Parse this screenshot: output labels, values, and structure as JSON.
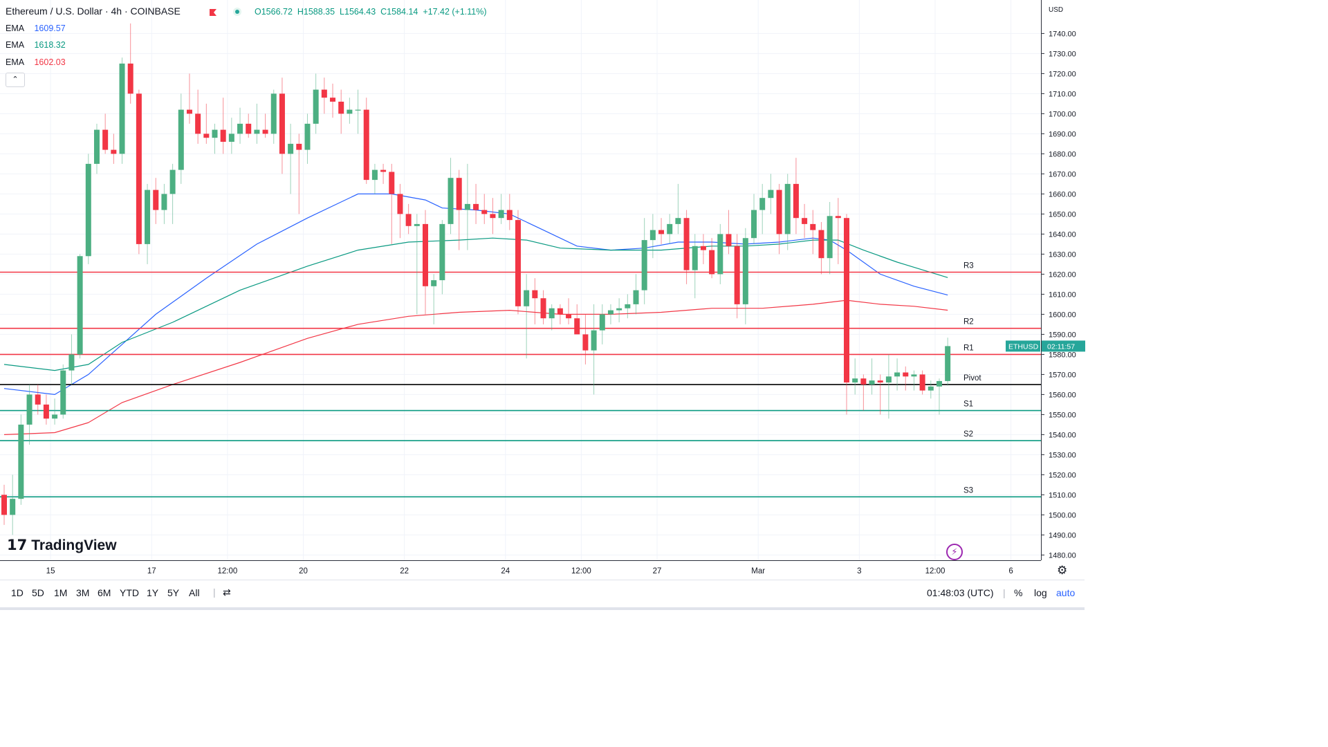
{
  "header": {
    "symbol": "Ethereum / U.S. Dollar · 4h · COINBASE",
    "open": "O1566.72",
    "high": "H1588.35",
    "low": "L1564.43",
    "close": "C1584.14",
    "change": "+17.42 (+1.11%)"
  },
  "emas": [
    {
      "label": "EMA",
      "value": "1609.57",
      "color": "#2962ff"
    },
    {
      "label": "EMA",
      "value": "1618.32",
      "color": "#089981"
    },
    {
      "label": "EMA",
      "value": "1602.03",
      "color": "#f23645"
    }
  ],
  "collapse_label": "⌃",
  "currency": "USD",
  "price_tag": {
    "symbol": "ETHUSD",
    "countdown": "02:11:57",
    "color": "#26a69a"
  },
  "logo_text": "TradingView",
  "bottom": {
    "ranges": [
      "1D",
      "5D",
      "1M",
      "3M",
      "6M",
      "YTD",
      "1Y",
      "5Y",
      "All"
    ],
    "clock": "01:48:03 (UTC)",
    "pct": "%",
    "log": "log",
    "auto": "auto"
  },
  "chart_data": {
    "type": "candlestick",
    "title": "Ethereum / U.S. Dollar · 4h · COINBASE",
    "ylim": [
      1470,
      1760
    ],
    "y_ticks": [
      "1480.00",
      "1490.00",
      "1500.00",
      "1510.00",
      "1520.00",
      "1530.00",
      "1540.00",
      "1550.00",
      "1560.00",
      "1570.00",
      "1580.00",
      "1590.00",
      "1600.00",
      "1610.00",
      "1620.00",
      "1630.00",
      "1640.00",
      "1650.00",
      "1660.00",
      "1670.00",
      "1680.00",
      "1690.00",
      "1700.00",
      "1710.00",
      "1720.00",
      "1730.00",
      "1740.00"
    ],
    "x_ticks": [
      {
        "label": "15",
        "bar": 6
      },
      {
        "label": "17",
        "bar": 18
      },
      {
        "label": "12:00",
        "bar": 27
      },
      {
        "label": "20",
        "bar": 36
      },
      {
        "label": "22",
        "bar": 48
      },
      {
        "label": "24",
        "bar": 60
      },
      {
        "label": "12:00",
        "bar": 69
      },
      {
        "label": "27",
        "bar": 78
      },
      {
        "label": "Mar",
        "bar": 90
      },
      {
        "label": "3",
        "bar": 102
      },
      {
        "label": "12:00",
        "bar": 111
      },
      {
        "label": "6",
        "bar": 120
      }
    ],
    "levels": [
      {
        "name": "R3",
        "value": 1621,
        "color": "#f23645"
      },
      {
        "name": "R2",
        "value": 1593,
        "color": "#f23645"
      },
      {
        "name": "R1",
        "value": 1580,
        "color": "#f23645"
      },
      {
        "name": "Pivot",
        "value": 1565,
        "color": "#000000"
      },
      {
        "name": "S1",
        "value": 1552,
        "color": "#089981"
      },
      {
        "name": "S2",
        "value": 1537,
        "color": "#089981"
      },
      {
        "name": "S3",
        "value": 1509,
        "color": "#089981"
      }
    ],
    "candles": [
      [
        1510,
        1515,
        1495,
        1500
      ],
      [
        1500,
        1520,
        1490,
        1508
      ],
      [
        1508,
        1550,
        1505,
        1545
      ],
      [
        1545,
        1565,
        1535,
        1560
      ],
      [
        1560,
        1565,
        1550,
        1555
      ],
      [
        1555,
        1560,
        1545,
        1548
      ],
      [
        1548,
        1558,
        1545,
        1550
      ],
      [
        1550,
        1575,
        1548,
        1572
      ],
      [
        1572,
        1590,
        1565,
        1580
      ],
      [
        1580,
        1630,
        1578,
        1629
      ],
      [
        1629,
        1680,
        1625,
        1675
      ],
      [
        1675,
        1695,
        1670,
        1692
      ],
      [
        1692,
        1700,
        1680,
        1682
      ],
      [
        1682,
        1690,
        1675,
        1680
      ],
      [
        1680,
        1728,
        1675,
        1725
      ],
      [
        1725,
        1745,
        1705,
        1710
      ],
      [
        1710,
        1712,
        1630,
        1635
      ],
      [
        1635,
        1665,
        1625,
        1662
      ],
      [
        1662,
        1668,
        1645,
        1652
      ],
      [
        1652,
        1665,
        1645,
        1660
      ],
      [
        1660,
        1675,
        1645,
        1672
      ],
      [
        1672,
        1710,
        1665,
        1702
      ],
      [
        1702,
        1720,
        1695,
        1700
      ],
      [
        1700,
        1712,
        1685,
        1690
      ],
      [
        1690,
        1705,
        1685,
        1688
      ],
      [
        1688,
        1695,
        1680,
        1692
      ],
      [
        1692,
        1708,
        1680,
        1686
      ],
      [
        1686,
        1698,
        1680,
        1690
      ],
      [
        1690,
        1703,
        1685,
        1695
      ],
      [
        1695,
        1700,
        1688,
        1690
      ],
      [
        1690,
        1705,
        1685,
        1692
      ],
      [
        1692,
        1700,
        1688,
        1690
      ],
      [
        1690,
        1712,
        1685,
        1710
      ],
      [
        1710,
        1718,
        1670,
        1680
      ],
      [
        1680,
        1695,
        1660,
        1685
      ],
      [
        1685,
        1690,
        1650,
        1682
      ],
      [
        1682,
        1700,
        1675,
        1695
      ],
      [
        1695,
        1720,
        1690,
        1712
      ],
      [
        1712,
        1718,
        1700,
        1708
      ],
      [
        1708,
        1715,
        1698,
        1706
      ],
      [
        1706,
        1712,
        1690,
        1700
      ],
      [
        1700,
        1708,
        1695,
        1702
      ],
      [
        1702,
        1712,
        1690,
        1702
      ],
      [
        1702,
        1708,
        1665,
        1667
      ],
      [
        1667,
        1675,
        1660,
        1672
      ],
      [
        1672,
        1675,
        1665,
        1671
      ],
      [
        1671,
        1675,
        1635,
        1660
      ],
      [
        1660,
        1665,
        1638,
        1650
      ],
      [
        1650,
        1655,
        1640,
        1644
      ],
      [
        1644,
        1650,
        1600,
        1645
      ],
      [
        1645,
        1652,
        1600,
        1614
      ],
      [
        1614,
        1620,
        1595,
        1617
      ],
      [
        1617,
        1647,
        1610,
        1645
      ],
      [
        1645,
        1678,
        1640,
        1668
      ],
      [
        1668,
        1672,
        1632,
        1652
      ],
      [
        1652,
        1675,
        1632,
        1655
      ],
      [
        1655,
        1665,
        1645,
        1652
      ],
      [
        1652,
        1660,
        1645,
        1650
      ],
      [
        1650,
        1658,
        1640,
        1648
      ],
      [
        1648,
        1660,
        1645,
        1652
      ],
      [
        1652,
        1660,
        1642,
        1647
      ],
      [
        1647,
        1652,
        1600,
        1604
      ],
      [
        1604,
        1620,
        1578,
        1612
      ],
      [
        1612,
        1618,
        1595,
        1608
      ],
      [
        1608,
        1612,
        1595,
        1598
      ],
      [
        1598,
        1605,
        1592,
        1603
      ],
      [
        1603,
        1605,
        1595,
        1600
      ],
      [
        1600,
        1608,
        1595,
        1598
      ],
      [
        1598,
        1605,
        1590,
        1590
      ],
      [
        1590,
        1600,
        1575,
        1582
      ],
      [
        1582,
        1605,
        1560,
        1592
      ],
      [
        1592,
        1605,
        1585,
        1600
      ],
      [
        1600,
        1605,
        1595,
        1602
      ],
      [
        1602,
        1608,
        1596,
        1603
      ],
      [
        1603,
        1610,
        1598,
        1605
      ],
      [
        1605,
        1620,
        1600,
        1612
      ],
      [
        1612,
        1648,
        1605,
        1637
      ],
      [
        1637,
        1650,
        1628,
        1642
      ],
      [
        1642,
        1648,
        1635,
        1640
      ],
      [
        1640,
        1650,
        1635,
        1645
      ],
      [
        1645,
        1665,
        1640,
        1648
      ],
      [
        1648,
        1652,
        1615,
        1622
      ],
      [
        1622,
        1640,
        1608,
        1634
      ],
      [
        1634,
        1640,
        1625,
        1632
      ],
      [
        1632,
        1638,
        1618,
        1620
      ],
      [
        1620,
        1645,
        1615,
        1640
      ],
      [
        1640,
        1652,
        1630,
        1634
      ],
      [
        1634,
        1640,
        1598,
        1605
      ],
      [
        1605,
        1643,
        1595,
        1638
      ],
      [
        1638,
        1660,
        1635,
        1652
      ],
      [
        1652,
        1665,
        1640,
        1658
      ],
      [
        1658,
        1670,
        1650,
        1662
      ],
      [
        1662,
        1665,
        1630,
        1640
      ],
      [
        1640,
        1670,
        1632,
        1665
      ],
      [
        1665,
        1678,
        1640,
        1648
      ],
      [
        1648,
        1655,
        1638,
        1645
      ],
      [
        1645,
        1652,
        1630,
        1642
      ],
      [
        1642,
        1646,
        1620,
        1628
      ],
      [
        1628,
        1656,
        1620,
        1649
      ],
      [
        1649,
        1658,
        1625,
        1648
      ],
      [
        1648,
        1650,
        1550,
        1566
      ],
      [
        1566,
        1578,
        1560,
        1568
      ],
      [
        1568,
        1570,
        1552,
        1565
      ],
      [
        1565,
        1578,
        1560,
        1567
      ],
      [
        1567,
        1570,
        1550,
        1566
      ],
      [
        1566,
        1580,
        1548,
        1569
      ],
      [
        1569,
        1578,
        1562,
        1571
      ],
      [
        1571,
        1574,
        1562,
        1569
      ],
      [
        1569,
        1572,
        1562,
        1570
      ],
      [
        1570,
        1572,
        1560,
        1562
      ],
      [
        1562,
        1567,
        1558,
        1564
      ],
      [
        1564,
        1568,
        1550,
        1566.72
      ],
      [
        1566.72,
        1588.35,
        1564.43,
        1584.14
      ]
    ],
    "ema_series": [
      {
        "name": "EMA",
        "value": 1609.57,
        "color": "#2962ff",
        "points": [
          [
            0,
            1563
          ],
          [
            6,
            1560
          ],
          [
            10,
            1570
          ],
          [
            14,
            1585
          ],
          [
            18,
            1600
          ],
          [
            24,
            1618
          ],
          [
            30,
            1635
          ],
          [
            36,
            1648
          ],
          [
            40,
            1656
          ],
          [
            42,
            1660
          ],
          [
            46,
            1660
          ],
          [
            50,
            1657
          ],
          [
            52,
            1653
          ],
          [
            56,
            1652
          ],
          [
            60,
            1650
          ],
          [
            64,
            1642
          ],
          [
            68,
            1634
          ],
          [
            72,
            1632
          ],
          [
            76,
            1633
          ],
          [
            80,
            1636
          ],
          [
            84,
            1636
          ],
          [
            88,
            1635
          ],
          [
            92,
            1636
          ],
          [
            96,
            1638
          ],
          [
            98,
            1637
          ],
          [
            100,
            1632
          ],
          [
            104,
            1620
          ],
          [
            108,
            1614
          ],
          [
            112,
            1609.57
          ]
        ]
      },
      {
        "name": "EMA",
        "value": 1618.32,
        "color": "#089981",
        "points": [
          [
            0,
            1575
          ],
          [
            6,
            1572
          ],
          [
            10,
            1575
          ],
          [
            14,
            1586
          ],
          [
            20,
            1596
          ],
          [
            28,
            1612
          ],
          [
            36,
            1624
          ],
          [
            42,
            1632
          ],
          [
            48,
            1636
          ],
          [
            54,
            1637
          ],
          [
            58,
            1638
          ],
          [
            62,
            1637
          ],
          [
            66,
            1633
          ],
          [
            72,
            1632
          ],
          [
            78,
            1632
          ],
          [
            84,
            1634
          ],
          [
            88,
            1634
          ],
          [
            92,
            1635
          ],
          [
            96,
            1637
          ],
          [
            99,
            1637
          ],
          [
            102,
            1632
          ],
          [
            106,
            1626
          ],
          [
            112,
            1618.32
          ]
        ]
      },
      {
        "name": "EMA",
        "value": 1602.03,
        "color": "#f23645",
        "points": [
          [
            0,
            1540
          ],
          [
            6,
            1541
          ],
          [
            10,
            1546
          ],
          [
            14,
            1556
          ],
          [
            20,
            1565
          ],
          [
            28,
            1576
          ],
          [
            36,
            1588
          ],
          [
            42,
            1595
          ],
          [
            48,
            1599
          ],
          [
            54,
            1601
          ],
          [
            60,
            1602
          ],
          [
            66,
            1600
          ],
          [
            72,
            1600
          ],
          [
            78,
            1601
          ],
          [
            84,
            1603
          ],
          [
            90,
            1603
          ],
          [
            96,
            1605
          ],
          [
            100,
            1607
          ],
          [
            104,
            1605
          ],
          [
            108,
            1604
          ],
          [
            112,
            1602.03
          ]
        ]
      }
    ]
  }
}
